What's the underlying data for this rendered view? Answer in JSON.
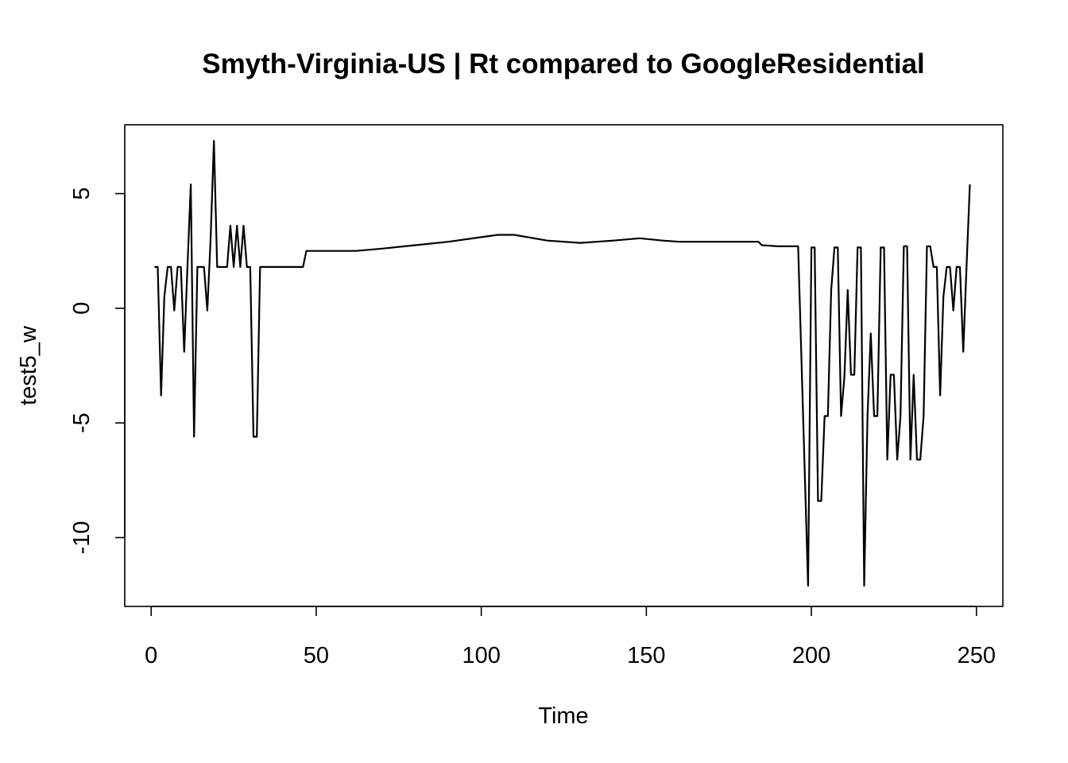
{
  "chart_data": {
    "type": "line",
    "title": "Smyth-Virginia-US | Rt compared to GoogleResidential",
    "xlabel": "Time",
    "ylabel": "test5_w",
    "xlim": [
      -8,
      258
    ],
    "ylim": [
      -13,
      8
    ],
    "xticks": [
      0,
      50,
      100,
      150,
      200,
      250
    ],
    "yticks": [
      -10,
      -5,
      0,
      5
    ],
    "grid": false,
    "legend": "none",
    "line_color": "#000000",
    "series": [
      {
        "x": [
          1,
          2,
          3,
          4,
          5,
          6,
          7,
          8,
          9,
          10,
          11,
          12,
          13,
          14,
          15,
          16,
          17,
          18,
          19,
          20,
          21,
          22,
          23,
          24,
          25,
          26,
          27,
          28,
          29,
          30,
          31,
          32,
          33,
          40,
          46,
          47,
          55,
          62,
          70,
          80,
          90,
          100,
          105,
          110,
          120,
          130,
          140,
          148,
          155,
          160,
          170,
          178,
          184,
          185,
          190,
          196,
          199,
          200,
          201,
          202,
          203,
          204,
          205,
          206,
          207,
          208,
          209,
          210,
          211,
          212,
          213,
          214,
          215,
          216,
          217,
          218,
          219,
          220,
          221,
          222,
          223,
          224,
          225,
          226,
          227,
          228,
          229,
          230,
          231,
          232,
          233,
          234,
          235,
          236,
          237,
          238,
          239,
          240,
          241,
          242,
          243,
          244,
          245,
          246,
          247,
          248
        ],
        "y": [
          1.8,
          1.8,
          -3.8,
          0.5,
          1.8,
          1.8,
          -0.1,
          1.8,
          1.8,
          -1.9,
          1.8,
          5.4,
          -5.6,
          1.8,
          1.8,
          1.8,
          -0.1,
          3.0,
          7.3,
          1.8,
          1.8,
          1.8,
          1.8,
          3.6,
          1.8,
          3.6,
          1.8,
          3.6,
          1.8,
          1.8,
          -5.6,
          -5.6,
          1.8,
          1.8,
          1.8,
          2.5,
          2.5,
          2.5,
          2.6,
          2.75,
          2.9,
          3.1,
          3.2,
          3.2,
          2.95,
          2.85,
          2.95,
          3.05,
          2.95,
          2.9,
          2.9,
          2.9,
          2.9,
          2.75,
          2.7,
          2.7,
          -12.1,
          2.65,
          2.65,
          -8.4,
          -8.4,
          -4.7,
          -4.7,
          0.8,
          2.65,
          2.65,
          -4.7,
          -3.0,
          0.8,
          -2.9,
          -2.9,
          2.65,
          2.65,
          -12.1,
          -4.7,
          -1.1,
          -4.7,
          -4.7,
          2.65,
          2.65,
          -6.6,
          -2.9,
          -2.9,
          -6.6,
          -4.7,
          2.7,
          2.7,
          -6.6,
          -2.9,
          -6.6,
          -6.6,
          -4.7,
          2.7,
          2.7,
          1.8,
          1.8,
          -3.8,
          0.5,
          1.8,
          1.8,
          -0.1,
          1.8,
          1.8,
          -1.9,
          1.8,
          5.4
        ]
      }
    ]
  }
}
